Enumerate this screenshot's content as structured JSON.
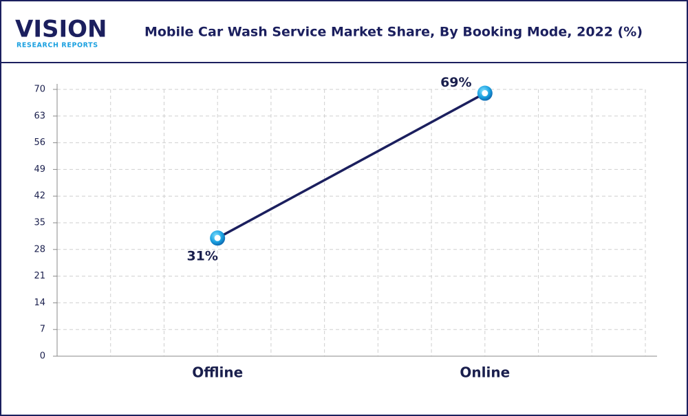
{
  "header": {
    "logo": "VISION",
    "logo_sub": "RESEARCH REPORTS"
  },
  "chart_data": {
    "type": "line",
    "title": "Mobile Car Wash Service Market Share, By Booking Mode, 2022 (%)",
    "categories": [
      "Offline",
      "Online"
    ],
    "series": [
      {
        "name": "Market Share",
        "color": "#1b1f5e",
        "values": [
          31,
          69
        ],
        "value_labels": [
          "31%",
          "69%"
        ]
      }
    ],
    "ylim": [
      0,
      70
    ],
    "yticks": [
      0,
      7,
      14,
      21,
      28,
      35,
      42,
      49,
      56,
      63,
      70
    ],
    "grid": true
  }
}
